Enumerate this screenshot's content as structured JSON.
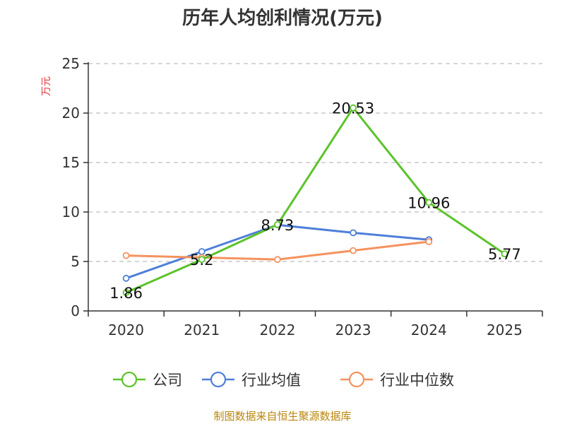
{
  "chart_data": {
    "type": "line",
    "title": "历年人均创利情况(万元)",
    "ylabel": "万元",
    "xlabel": "",
    "categories": [
      "2020",
      "2021",
      "2022",
      "2023",
      "2024",
      "2025"
    ],
    "ylim": [
      0,
      25
    ],
    "yticks": [
      "0",
      "5",
      "10",
      "15",
      "20",
      "25"
    ],
    "grid": true,
    "legend_position": "bottom",
    "series": [
      {
        "name": "公司",
        "color": "#5cc32b",
        "values": [
          1.86,
          5.2,
          8.73,
          20.53,
          10.96,
          5.77
        ],
        "labels": [
          "1.86",
          "5.2",
          "8.73",
          "20.53",
          "10.96",
          "5.77"
        ]
      },
      {
        "name": "行业均值",
        "color": "#4e7fd9",
        "values": [
          3.3,
          6.0,
          8.7,
          7.9,
          7.2,
          null
        ]
      },
      {
        "name": "行业中位数",
        "color": "#f5925e",
        "values": [
          5.6,
          5.4,
          5.2,
          6.1,
          7.0,
          null
        ]
      }
    ]
  },
  "source": "制图数据来自恒生聚源数据库"
}
